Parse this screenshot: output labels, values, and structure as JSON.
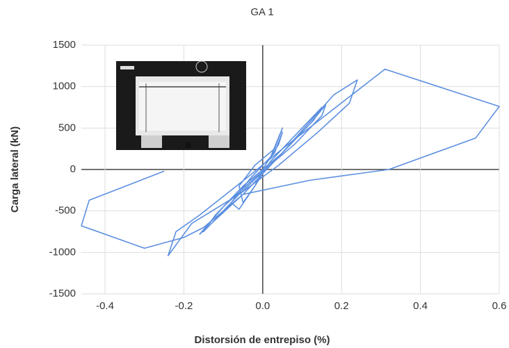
{
  "chart_data": {
    "type": "line",
    "title": "GA 1",
    "x_label": "Distorsión de entrepiso (%)",
    "y_label": "Carga lateral (kN)",
    "x": [
      0,
      0.02,
      0.05,
      0.03,
      -0.02,
      -0.06,
      -0.05,
      -0.02,
      0.0,
      0.04,
      0.05,
      0.03,
      -0.03,
      -0.08,
      -0.06,
      -0.02,
      0.02,
      0.1,
      0.15,
      0.13,
      0.05,
      -0.05,
      -0.12,
      -0.15,
      -0.13,
      -0.05,
      0.03,
      0.12,
      0.16,
      0.15,
      0.08,
      -0.02,
      -0.1,
      -0.16,
      -0.14,
      -0.06,
      0.04,
      0.18,
      0.24,
      0.22,
      0.14,
      0.04,
      -0.06,
      -0.18,
      -0.24,
      -0.22,
      -0.16,
      -0.04,
      0.05,
      0.31,
      0.6,
      0.54,
      0.32,
      0.12,
      -0.05,
      -0.15,
      -0.2,
      -0.3,
      -0.46,
      -0.44,
      -0.25
    ],
    "values": [
      0,
      150,
      500,
      250,
      50,
      -200,
      -400,
      -200,
      0,
      300,
      450,
      200,
      -100,
      -400,
      -480,
      -200,
      100,
      500,
      750,
      600,
      200,
      -200,
      -550,
      -750,
      -650,
      -300,
      100,
      550,
      780,
      650,
      300,
      -100,
      -450,
      -780,
      -700,
      -300,
      150,
      900,
      1080,
      800,
      450,
      50,
      -300,
      -650,
      -1040,
      -750,
      -550,
      -100,
      250,
      1210,
      760,
      380,
      0,
      -130,
      -300,
      -700,
      -820,
      -950,
      -680,
      -370,
      -20
    ],
    "color": "#5b8fe0",
    "xlim": [
      -0.46,
      0.6
    ],
    "xticks": [
      -0.4,
      -0.2,
      {
        "value": 0,
        "label": "0.0"
      },
      0.2,
      0.4,
      0.6
    ],
    "ylim": [
      -1500,
      1500
    ],
    "yticks": [
      -1500,
      -1000,
      -500,
      0,
      500,
      1000,
      1500
    ],
    "grid": true
  }
}
